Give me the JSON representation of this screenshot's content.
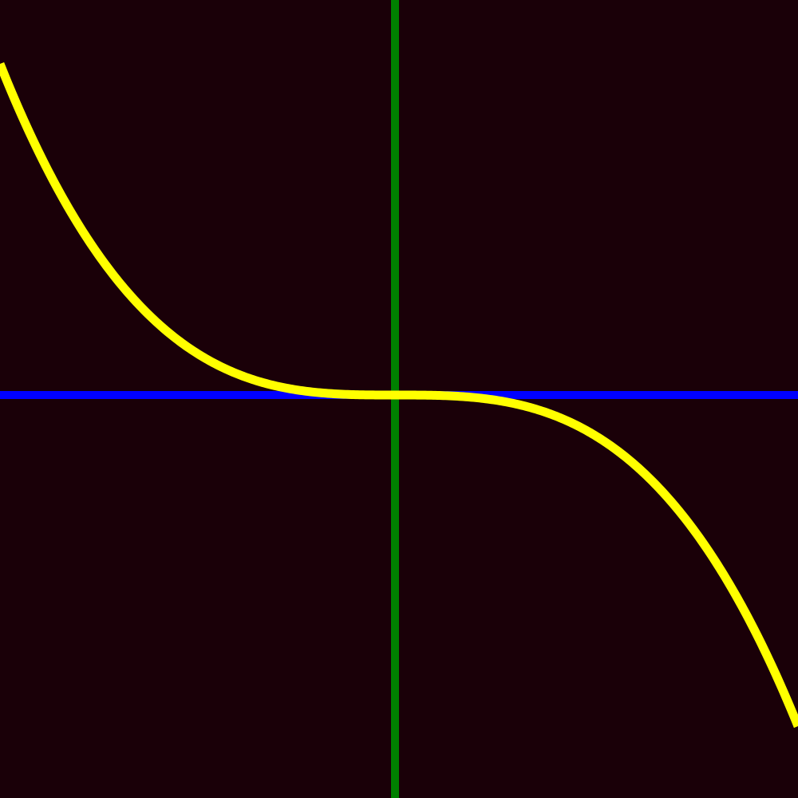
{
  "chart_data": {
    "type": "line",
    "title": "",
    "xlabel": "",
    "ylabel": "",
    "xlim": [
      -1,
      1
    ],
    "ylim": [
      -1,
      1
    ],
    "grid": false,
    "axes_visible": true,
    "series": [
      {
        "function": "y = -0.83 * x^3",
        "x": [
          -1.0,
          -0.9,
          -0.8,
          -0.7,
          -0.6,
          -0.5,
          -0.4,
          -0.3,
          -0.2,
          -0.1,
          0.0,
          0.1,
          0.2,
          0.3,
          0.4,
          0.5,
          0.6,
          0.7,
          0.8,
          0.9,
          1.0
        ],
        "y": [
          0.83,
          0.605,
          0.425,
          0.285,
          0.179,
          0.104,
          0.053,
          0.022,
          0.007,
          0.001,
          0.0,
          -0.001,
          -0.007,
          -0.022,
          -0.053,
          -0.104,
          -0.179,
          -0.285,
          -0.425,
          -0.605,
          -0.83
        ]
      }
    ]
  },
  "colors": {
    "background": "#1a0008",
    "x_axis": "#0000ff",
    "y_axis": "#008000",
    "curve": "#ffff00"
  }
}
